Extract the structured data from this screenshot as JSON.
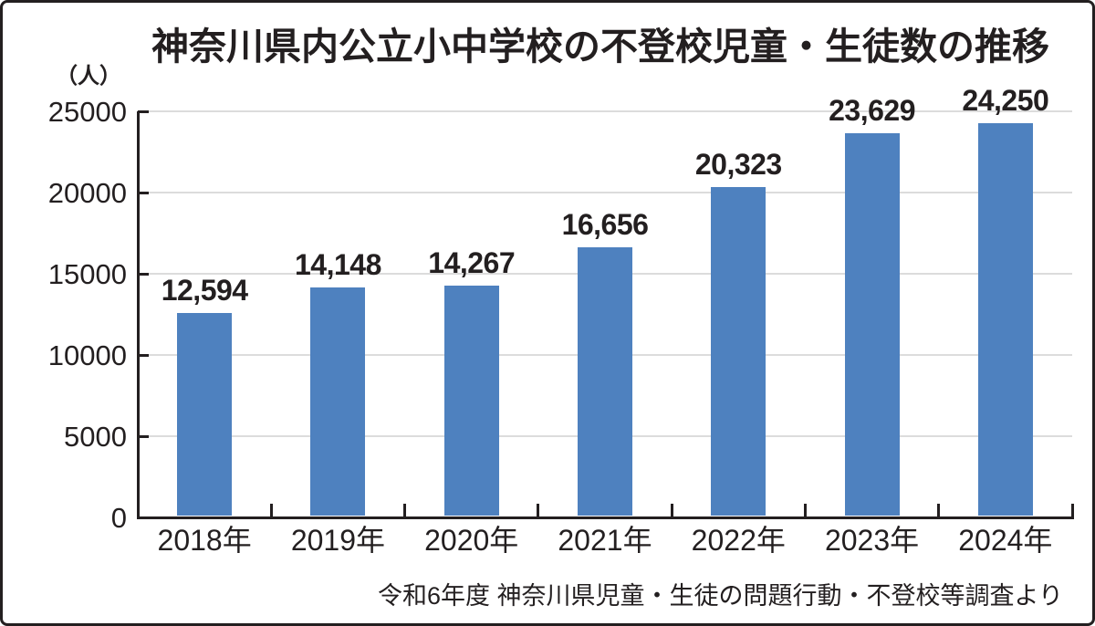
{
  "colors": {
    "bar": "#4e81bf",
    "grid": "#dcdcdc",
    "axis": "#231f20",
    "text": "#231f20",
    "border": "#231f20"
  },
  "chart_data": {
    "type": "bar",
    "title": "神奈川県内公立小中学校の不登校児童・生徒数の推移",
    "unit_label": "（人）",
    "categories": [
      "2018年",
      "2019年",
      "2020年",
      "2021年",
      "2022年",
      "2023年",
      "2024年"
    ],
    "values": [
      12594,
      14148,
      14267,
      16656,
      20323,
      23629,
      24250
    ],
    "value_labels": [
      "12,594",
      "14,148",
      "14,267",
      "16,656",
      "20,323",
      "23,629",
      "24,250"
    ],
    "ylim": [
      0,
      25000
    ],
    "ytick_interval": 5000,
    "ytick_labels": [
      "0",
      "5000",
      "10000",
      "15000",
      "20000",
      "25000"
    ],
    "grid": true,
    "legend": null,
    "source_note": "令和6年度 神奈川県児童・生徒の問題行動・不登校等調査より"
  }
}
